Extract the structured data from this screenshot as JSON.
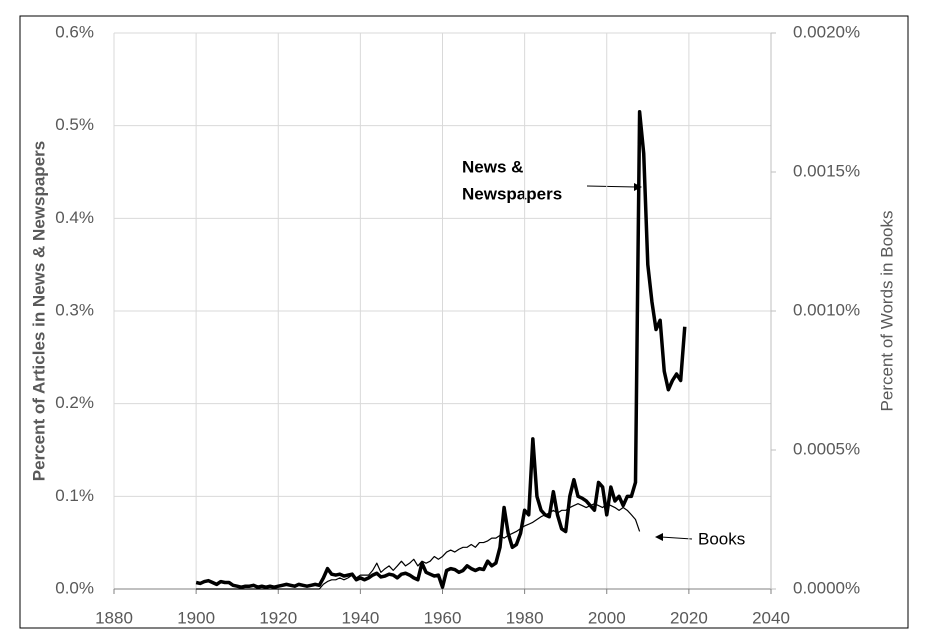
{
  "chart_data": {
    "type": "line",
    "y_label": "Percent of Articles in News & Newspapers",
    "y2_label": "Percent of Words in Books",
    "annotations": [
      "News &",
      "Newspapers",
      "Books"
    ],
    "x": [
      1900,
      1901,
      1902,
      1903,
      1904,
      1905,
      1906,
      1907,
      1908,
      1909,
      1910,
      1911,
      1912,
      1913,
      1914,
      1915,
      1916,
      1917,
      1918,
      1919,
      1920,
      1921,
      1922,
      1923,
      1924,
      1925,
      1926,
      1927,
      1928,
      1929,
      1930,
      1931,
      1932,
      1933,
      1934,
      1935,
      1936,
      1937,
      1938,
      1939,
      1940,
      1941,
      1942,
      1943,
      1944,
      1945,
      1946,
      1947,
      1948,
      1949,
      1950,
      1951,
      1952,
      1953,
      1954,
      1955,
      1956,
      1957,
      1958,
      1959,
      1960,
      1961,
      1962,
      1963,
      1964,
      1965,
      1966,
      1967,
      1968,
      1969,
      1970,
      1971,
      1972,
      1973,
      1974,
      1975,
      1976,
      1977,
      1978,
      1979,
      1980,
      1981,
      1982,
      1983,
      1984,
      1985,
      1986,
      1987,
      1988,
      1989,
      1990,
      1991,
      1992,
      1993,
      1994,
      1995,
      1996,
      1997,
      1998,
      1999,
      2000,
      2001,
      2002,
      2003,
      2004,
      2005,
      2006,
      2007,
      2008,
      2009,
      2010,
      2011,
      2012,
      2013,
      2014,
      2015,
      2016,
      2017,
      2018,
      2019
    ],
    "series": [
      {
        "name": "News & Newspapers",
        "color": "#000000",
        "line_width": 3.5,
        "values": [
          0.007,
          0.006,
          0.008,
          0.009,
          0.007,
          0.005,
          0.008,
          0.007,
          0.007,
          0.004,
          0.003,
          0.002,
          0.003,
          0.003,
          0.004,
          0.002,
          0.003,
          0.002,
          0.003,
          0.002,
          0.003,
          0.004,
          0.005,
          0.004,
          0.003,
          0.005,
          0.004,
          0.003,
          0.004,
          0.005,
          0.004,
          0.012,
          0.022,
          0.016,
          0.015,
          0.016,
          0.014,
          0.015,
          0.016,
          0.01,
          0.012,
          0.01,
          0.012,
          0.015,
          0.017,
          0.013,
          0.014,
          0.016,
          0.015,
          0.012,
          0.016,
          0.017,
          0.015,
          0.012,
          0.01,
          0.028,
          0.018,
          0.016,
          0.014,
          0.015,
          0.002,
          0.02,
          0.022,
          0.021,
          0.018,
          0.02,
          0.025,
          0.022,
          0.02,
          0.022,
          0.021,
          0.03,
          0.025,
          0.028,
          0.045,
          0.088,
          0.06,
          0.045,
          0.048,
          0.06,
          0.085,
          0.08,
          0.162,
          0.1,
          0.085,
          0.08,
          0.078,
          0.105,
          0.08,
          0.065,
          0.062,
          0.1,
          0.118,
          0.1,
          0.098,
          0.095,
          0.09,
          0.085,
          0.115,
          0.11,
          0.08,
          0.11,
          0.095,
          0.1,
          0.09,
          0.1,
          0.1,
          0.115,
          0.515,
          0.47,
          0.35,
          0.31,
          0.28,
          0.29,
          0.235,
          0.215,
          0.225,
          0.232,
          0.225,
          0.283
        ]
      },
      {
        "name": "Books",
        "color": "#000000",
        "line_width": 1.2,
        "axis": "y2",
        "values": [
          0,
          0,
          0,
          0,
          0,
          0,
          0,
          0,
          0,
          0,
          0,
          0,
          0,
          0,
          0,
          0,
          0,
          0,
          0,
          0,
          0,
          0,
          0,
          0,
          0,
          0,
          0,
          0,
          0,
          0,
          0,
          1.7e-05,
          2.7e-05,
          3.3e-05,
          3.3e-05,
          4e-05,
          3.3e-05,
          4e-05,
          5e-05,
          4e-05,
          5e-05,
          5e-05,
          5e-05,
          6.7e-05,
          9.3e-05,
          6e-05,
          7.3e-05,
          8.3e-05,
          6.7e-05,
          8.3e-05,
          0.0001,
          8.3e-05,
          9.3e-05,
          0.000107,
          8.3e-05,
          0.0001,
          9.3e-05,
          0.0001,
          0.000117,
          0.000107,
          0.000117,
          0.000133,
          0.00014,
          0.000133,
          0.000143,
          0.00015,
          0.00015,
          0.00016,
          0.00015,
          0.000167,
          0.000167,
          0.000173,
          0.000183,
          0.000183,
          0.000193,
          0.000183,
          0.000193,
          0.0002,
          0.000207,
          0.000217,
          0.000227,
          0.000233,
          0.00024,
          0.00025,
          0.00026,
          0.000267,
          0.000273,
          0.000283,
          0.000273,
          0.000283,
          0.000283,
          0.000293,
          0.0003,
          0.000307,
          0.0003,
          0.000293,
          0.0003,
          0.000307,
          0.0003,
          0.000293,
          0.000307,
          0.0003,
          0.000293,
          0.000283,
          0.000293,
          0.000283,
          0.000267,
          0.00025,
          0.000207,
          null,
          null,
          null,
          null,
          null,
          null,
          null,
          null,
          null,
          null,
          null
        ]
      }
    ],
    "xlim": [
      1880,
      2040
    ],
    "xticks": [
      1880,
      1900,
      1920,
      1940,
      1960,
      1980,
      2000,
      2020,
      2040
    ],
    "ylim": [
      0,
      0.6
    ],
    "yticks": [
      {
        "value": 0,
        "label": "0.0%"
      },
      {
        "value": 0.1,
        "label": "0.1%"
      },
      {
        "value": 0.2,
        "label": "0.2%"
      },
      {
        "value": 0.3,
        "label": "0.3%"
      },
      {
        "value": 0.4,
        "label": "0.4%"
      },
      {
        "value": 0.5,
        "label": "0.5%"
      },
      {
        "value": 0.6,
        "label": "0.6%"
      }
    ],
    "y2lim": [
      0,
      0.002
    ],
    "y2ticks": [
      {
        "value": 0,
        "label": "0.0000%"
      },
      {
        "value": 0.0005,
        "label": "0.0005%"
      },
      {
        "value": 0.001,
        "label": "0.0010%"
      },
      {
        "value": 0.0015,
        "label": "0.0015%"
      },
      {
        "value": 0.002,
        "label": "0.0020%"
      }
    ],
    "grid": true,
    "legend": false
  }
}
